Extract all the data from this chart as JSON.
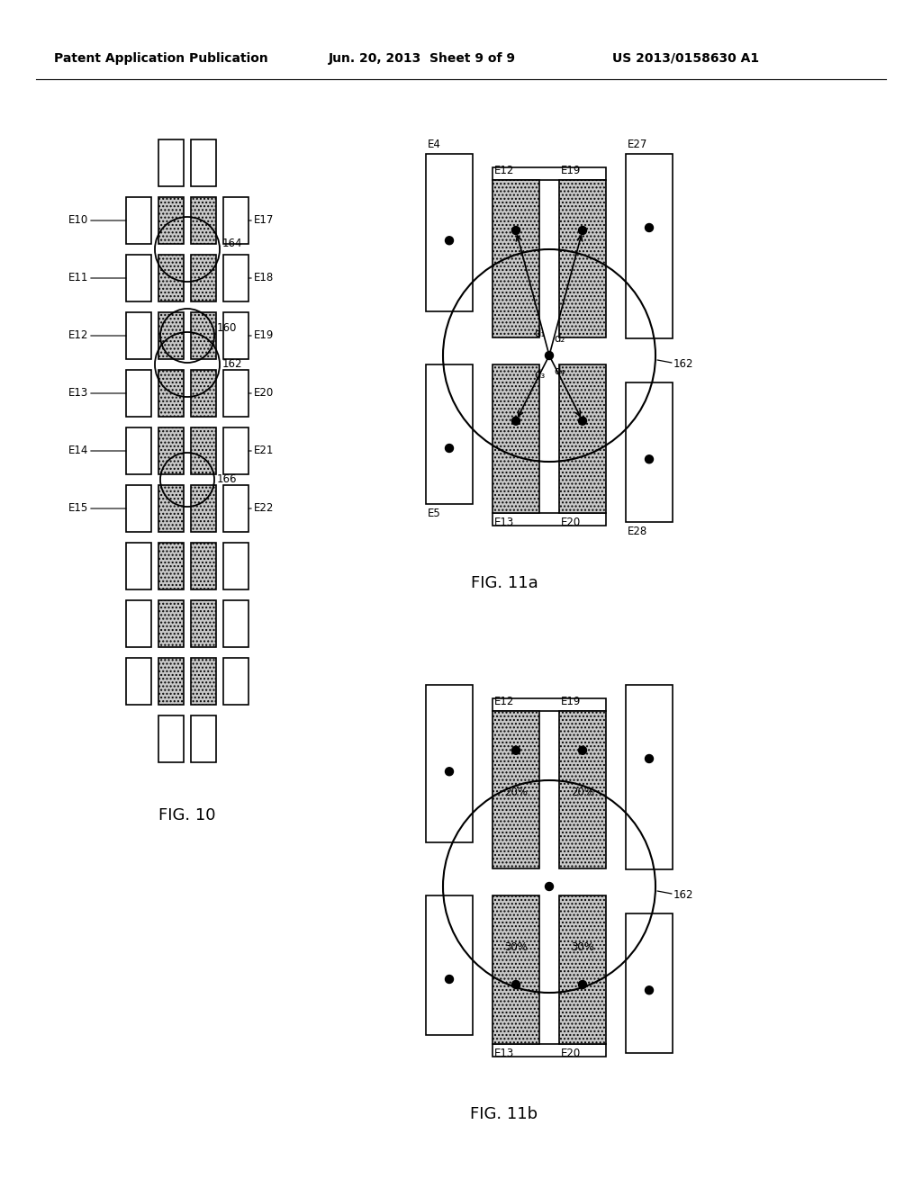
{
  "header_left": "Patent Application Publication",
  "header_mid": "Jun. 20, 2013  Sheet 9 of 9",
  "header_right": "US 2013/0158630 A1",
  "bg_color": "#ffffff",
  "fig10_label": "FIG. 10",
  "fig11a_label": "FIG. 11a",
  "fig11b_label": "FIG. 11b",
  "sh_fc": "#c8c8c8",
  "sh_hatch": "....",
  "ec": "#000000",
  "lw": 1.2
}
